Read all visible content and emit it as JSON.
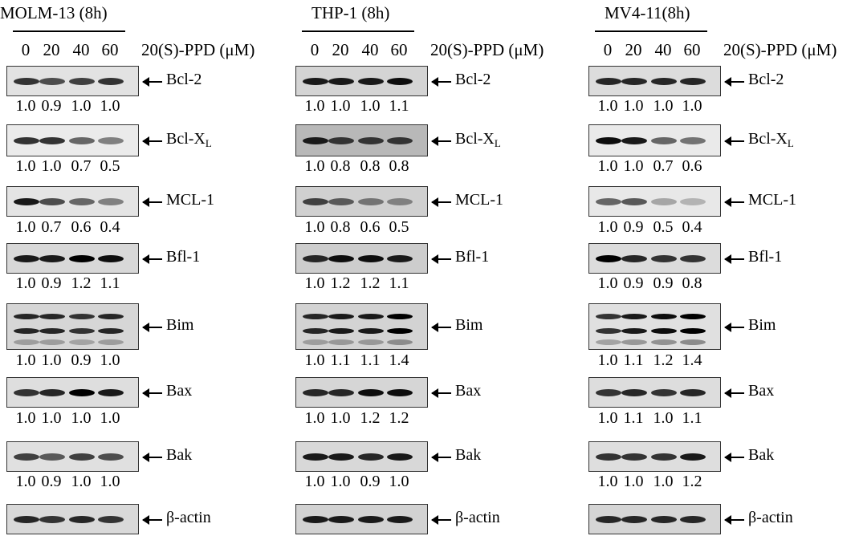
{
  "drug_label": "20(S)-PPD (μM)",
  "concentrations": [
    "0",
    "20",
    "40",
    "60"
  ],
  "panels": [
    {
      "title": "MOLM-13 (8h)",
      "rows": [
        {
          "protein": "Bcl-2",
          "quant": [
            "1.0",
            "0.9",
            "1.0",
            "1.0"
          ],
          "band_intensity": [
            0.8,
            0.7,
            0.75,
            0.8
          ],
          "bg": "#e2e2e2"
        },
        {
          "protein": "Bcl-X",
          "sub": "L",
          "quant": [
            "1.0",
            "1.0",
            "0.7",
            "0.5"
          ],
          "band_intensity": [
            0.8,
            0.8,
            0.6,
            0.5
          ],
          "bg": "#ebebeb"
        },
        {
          "protein": "MCL-1",
          "quant": [
            "1.0",
            "0.7",
            "0.6",
            "0.4"
          ],
          "band_intensity": [
            0.9,
            0.7,
            0.6,
            0.5
          ],
          "bg": "#e4e4e4"
        },
        {
          "protein": "Bfl-1",
          "quant": [
            "1.0",
            "0.9",
            "1.2",
            "1.1"
          ],
          "band_intensity": [
            0.9,
            0.9,
            1.0,
            0.95
          ],
          "bg": "#d8d8d8"
        },
        {
          "protein": "Bim",
          "quant": [
            "1.0",
            "1.0",
            "0.9",
            "1.0"
          ],
          "band_intensity": [
            0.85,
            0.85,
            0.8,
            0.85
          ],
          "bg": "#d6d6d6"
        },
        {
          "protein": "Bax",
          "quant": [
            "1.0",
            "1.0",
            "1.0",
            "1.0"
          ],
          "band_intensity": [
            0.8,
            0.85,
            1.0,
            0.9
          ],
          "bg": "#dedede"
        },
        {
          "protein": "Bak",
          "quant": [
            "1.0",
            "0.9",
            "1.0",
            "1.0"
          ],
          "band_intensity": [
            0.75,
            0.65,
            0.75,
            0.7
          ],
          "bg": "#e0e0e0"
        },
        {
          "protein": "β-actin",
          "quant": [],
          "band_intensity": [
            0.85,
            0.8,
            0.85,
            0.8
          ],
          "bg": "#d9d9d9"
        }
      ]
    },
    {
      "title": "THP-1 (8h)",
      "rows": [
        {
          "protein": "Bcl-2",
          "quant": [
            "1.0",
            "1.0",
            "1.0",
            "1.1"
          ],
          "band_intensity": [
            0.9,
            0.9,
            0.9,
            0.95
          ],
          "bg": "#d4d4d4"
        },
        {
          "protein": "Bcl-X",
          "sub": "L",
          "quant": [
            "1.0",
            "0.8",
            "0.8",
            "0.8"
          ],
          "band_intensity": [
            0.9,
            0.8,
            0.8,
            0.8
          ],
          "bg": "#b8b8b8"
        },
        {
          "protein": "MCL-1",
          "quant": [
            "1.0",
            "0.8",
            "0.6",
            "0.5"
          ],
          "band_intensity": [
            0.75,
            0.65,
            0.55,
            0.5
          ],
          "bg": "#d0d0d0"
        },
        {
          "protein": "Bfl-1",
          "quant": [
            "1.0",
            "1.2",
            "1.2",
            "1.1"
          ],
          "band_intensity": [
            0.85,
            0.95,
            0.95,
            0.9
          ],
          "bg": "#cdcdcd"
        },
        {
          "protein": "Bim",
          "quant": [
            "1.0",
            "1.1",
            "1.1",
            "1.4"
          ],
          "band_intensity": [
            0.85,
            0.9,
            0.9,
            1.0
          ],
          "bg": "#d3d3d3"
        },
        {
          "protein": "Bax",
          "quant": [
            "1.0",
            "1.0",
            "1.2",
            "1.2"
          ],
          "band_intensity": [
            0.85,
            0.85,
            0.95,
            0.95
          ],
          "bg": "#d6d6d6"
        },
        {
          "protein": "Bak",
          "quant": [
            "1.0",
            "1.0",
            "0.9",
            "1.0"
          ],
          "band_intensity": [
            0.9,
            0.9,
            0.85,
            0.9
          ],
          "bg": "#d8d8d8"
        },
        {
          "protein": "β-actin",
          "quant": [],
          "band_intensity": [
            0.9,
            0.9,
            0.9,
            0.9
          ],
          "bg": "#d2d2d2"
        }
      ]
    },
    {
      "title": "MV4-11(8h)",
      "rows": [
        {
          "protein": "Bcl-2",
          "quant": [
            "1.0",
            "1.0",
            "1.0",
            "1.0"
          ],
          "band_intensity": [
            0.85,
            0.85,
            0.85,
            0.85
          ],
          "bg": "#dcdcdc"
        },
        {
          "protein": "Bcl-X",
          "sub": "L",
          "quant": [
            "1.0",
            "1.0",
            "0.7",
            "0.6"
          ],
          "band_intensity": [
            0.95,
            0.9,
            0.6,
            0.55
          ],
          "bg": "#eaeaea"
        },
        {
          "protein": "MCL-1",
          "quant": [
            "1.0",
            "0.9",
            "0.5",
            "0.4"
          ],
          "band_intensity": [
            0.6,
            0.65,
            0.35,
            0.3
          ],
          "bg": "#e8e8e8"
        },
        {
          "protein": "Bfl-1",
          "quant": [
            "1.0",
            "0.9",
            "0.9",
            "0.8"
          ],
          "band_intensity": [
            1.0,
            0.85,
            0.8,
            0.8
          ],
          "bg": "#dcdcdc"
        },
        {
          "protein": "Bim",
          "quant": [
            "1.0",
            "1.1",
            "1.2",
            "1.4"
          ],
          "band_intensity": [
            0.8,
            0.9,
            0.95,
            1.0
          ],
          "bg": "#e0e0e0"
        },
        {
          "protein": "Bax",
          "quant": [
            "1.0",
            "1.1",
            "1.0",
            "1.1"
          ],
          "band_intensity": [
            0.8,
            0.85,
            0.8,
            0.85
          ],
          "bg": "#dddddd"
        },
        {
          "protein": "Bak",
          "quant": [
            "1.0",
            "1.0",
            "1.0",
            "1.2"
          ],
          "band_intensity": [
            0.8,
            0.8,
            0.8,
            0.9
          ],
          "bg": "#dedede"
        },
        {
          "protein": "β-actin",
          "quant": [],
          "band_intensity": [
            0.85,
            0.85,
            0.85,
            0.85
          ],
          "bg": "#d5d5d5"
        }
      ]
    }
  ]
}
